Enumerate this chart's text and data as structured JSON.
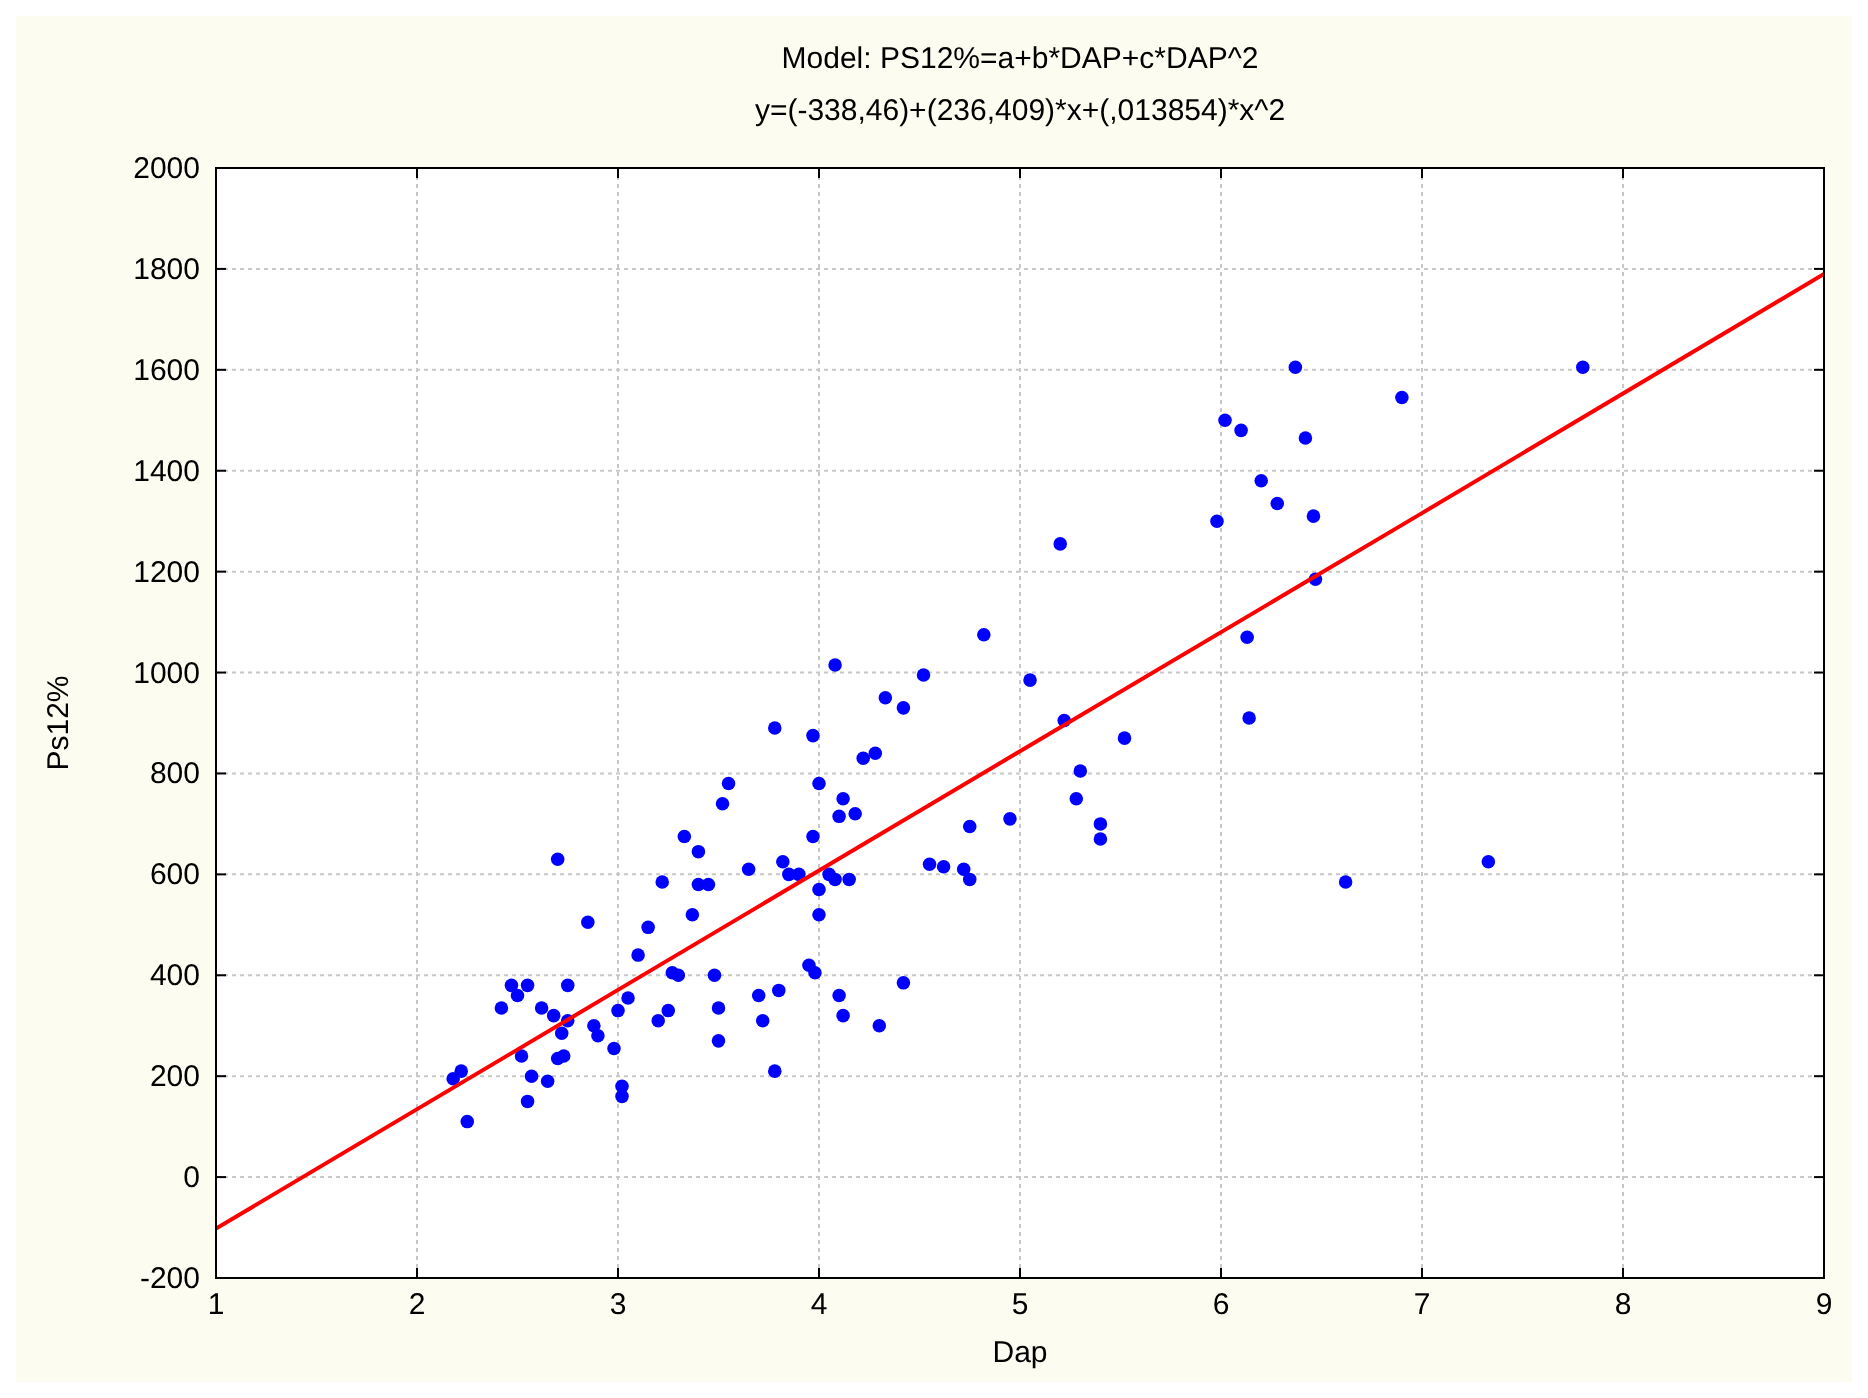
{
  "chart_data": {
    "type": "scatter",
    "title": "Model: PS12%=a+b*DAP+c*DAP^2",
    "subtitle": "y=(-338,46)+(236,409)*x+(,013854)*x^2",
    "xlabel": "Dap",
    "ylabel": "Ps12%",
    "xlim": [
      1,
      9
    ],
    "xticks": [
      1,
      2,
      3,
      4,
      5,
      6,
      7,
      8,
      9
    ],
    "ylim": [
      -200,
      2000
    ],
    "yticks": [
      -200,
      0,
      200,
      400,
      600,
      800,
      1000,
      1200,
      1400,
      1600,
      1800,
      2000
    ],
    "grid": true,
    "marker": "circle",
    "series": [
      {
        "color": "#0000ff",
        "x": [
          2.18,
          2.22,
          2.25,
          2.42,
          2.47,
          2.5,
          2.52,
          2.55,
          2.55,
          2.57,
          2.62,
          2.65,
          2.68,
          2.7,
          2.7,
          2.72,
          2.75,
          2.73,
          2.75,
          2.85,
          2.88,
          2.9,
          2.98,
          3.0,
          3.02,
          3.02,
          3.05,
          3.1,
          3.15,
          3.2,
          3.22,
          3.25,
          3.27,
          3.3,
          3.33,
          3.37,
          3.4,
          3.4,
          3.45,
          3.48,
          3.5,
          3.5,
          3.52,
          3.55,
          3.65,
          3.7,
          3.72,
          3.78,
          3.8,
          3.78,
          3.82,
          3.85,
          3.9,
          3.95,
          3.98,
          3.97,
          3.97,
          4.0,
          4.0,
          4.0,
          4.05,
          4.08,
          4.08,
          4.1,
          4.1,
          4.12,
          4.12,
          4.15,
          4.18,
          4.22,
          4.28,
          4.3,
          4.33,
          4.42,
          4.42,
          4.52,
          4.55,
          4.62,
          4.72,
          4.75,
          4.75,
          4.82,
          4.95,
          5.05,
          5.2,
          5.22,
          5.28,
          5.3,
          5.4,
          5.4,
          5.52,
          5.98,
          6.02,
          6.1,
          6.13,
          6.14,
          6.2,
          6.28,
          6.37,
          6.42,
          6.46,
          6.47,
          6.62,
          6.9,
          7.33,
          7.8
        ],
        "values": [
          195,
          210,
          110,
          335,
          380,
          360,
          240,
          380,
          150,
          200,
          335,
          190,
          320,
          235,
          630,
          285,
          380,
          240,
          310,
          505,
          300,
          280,
          255,
          330,
          180,
          160,
          355,
          440,
          495,
          310,
          585,
          330,
          405,
          400,
          675,
          520,
          580,
          645,
          580,
          400,
          335,
          270,
          740,
          780,
          610,
          360,
          310,
          890,
          370,
          210,
          625,
          600,
          600,
          420,
          405,
          875,
          675,
          780,
          570,
          520,
          600,
          1015,
          590,
          360,
          715,
          750,
          320,
          590,
          720,
          830,
          840,
          300,
          950,
          930,
          385,
          995,
          620,
          615,
          610,
          590,
          695,
          1075,
          710,
          985,
          1255,
          905,
          750,
          805,
          700,
          670,
          870,
          1300,
          1500,
          1480,
          1070,
          910,
          1380,
          1335,
          1605,
          1465,
          1310,
          1185,
          585,
          1545,
          625,
          1605
        ]
      },
      {
        "type": "line",
        "color": "#ff0000",
        "marker": "none",
        "x": [
          1,
          3,
          5,
          7,
          9
        ],
        "values": [
          -102,
          371,
          844,
          1316,
          1790
        ]
      }
    ]
  }
}
